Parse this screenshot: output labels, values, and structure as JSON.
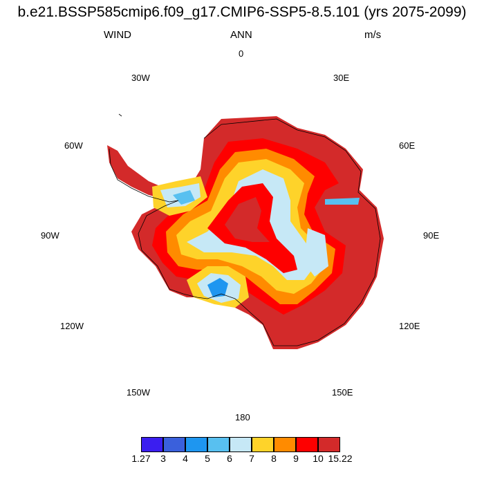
{
  "title": "b.e21.BSSP585cmip6.f09_g17.CMIP6-SSP5-8.5.101 (yrs 2075-2099)",
  "left_label": "WIND",
  "center_label": "ANN",
  "right_label": "m/s",
  "longitudes": {
    "n": "0",
    "e30": "30E",
    "e60": "60E",
    "e90": "90E",
    "e120": "120E",
    "e150": "150E",
    "s": "180",
    "w150": "150W",
    "w120": "120W",
    "w90": "90W",
    "w60": "60W",
    "w30": "30W"
  },
  "colorbar": {
    "colors": [
      "#3b1ef0",
      "#3a60dc",
      "#1e96f0",
      "#58c0f0",
      "#c6e8f6",
      "#fed32a",
      "#ff8b00",
      "#fe0000",
      "#d32a2a"
    ],
    "labels": [
      "1.27",
      "3",
      "4",
      "5",
      "6",
      "7",
      "8",
      "9",
      "10",
      "15.22"
    ]
  }
}
